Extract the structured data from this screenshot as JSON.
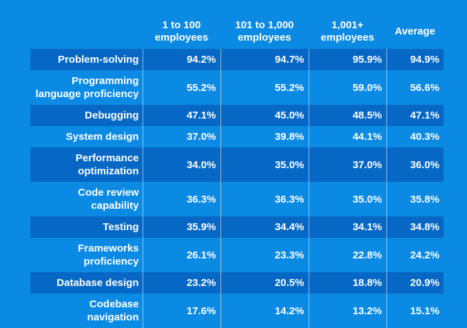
{
  "chart_data": {
    "type": "table",
    "columns": [
      "1 to 100 employees",
      "101 to 1,000 employees",
      "1,001+ employees",
      "Average"
    ],
    "header_lines": [
      [
        "1 to 100",
        "employees"
      ],
      [
        "101 to 1,000",
        "employees"
      ],
      [
        "1,001+",
        "employees"
      ],
      [
        "Average"
      ]
    ],
    "rows": [
      {
        "label": "Problem-solving",
        "label_lines": [
          "Problem-solving"
        ],
        "values": [
          "94.2%",
          "94.7%",
          "95.9%",
          "94.9%"
        ]
      },
      {
        "label": "Programming language proficiency",
        "label_lines": [
          "Programming",
          "language proficiency"
        ],
        "values": [
          "55.2%",
          "55.2%",
          "59.0%",
          "56.6%"
        ]
      },
      {
        "label": "Debugging",
        "label_lines": [
          "Debugging"
        ],
        "values": [
          "47.1%",
          "45.0%",
          "48.5%",
          "47.1%"
        ]
      },
      {
        "label": "System design",
        "label_lines": [
          "System design"
        ],
        "values": [
          "37.0%",
          "39.8%",
          "44.1%",
          "40.3%"
        ]
      },
      {
        "label": "Performance optimization",
        "label_lines": [
          "Performance",
          "optimization"
        ],
        "values": [
          "34.0%",
          "35.0%",
          "37.0%",
          "36.0%"
        ]
      },
      {
        "label": "Code review capability",
        "label_lines": [
          "Code review",
          "capability"
        ],
        "values": [
          "36.3%",
          "36.3%",
          "35.0%",
          "35.8%"
        ]
      },
      {
        "label": "Testing",
        "label_lines": [
          "Testing"
        ],
        "values": [
          "35.9%",
          "34.4%",
          "34.1%",
          "34.8%"
        ]
      },
      {
        "label": "Frameworks proficiency",
        "label_lines": [
          "Frameworks",
          "proficiency"
        ],
        "values": [
          "26.1%",
          "23.3%",
          "22.8%",
          "24.2%"
        ]
      },
      {
        "label": "Database design",
        "label_lines": [
          "Database design"
        ],
        "values": [
          "23.2%",
          "20.5%",
          "18.8%",
          "20.9%"
        ]
      },
      {
        "label": "Codebase navigation",
        "label_lines": [
          "Codebase",
          "navigation"
        ],
        "values": [
          "17.6%",
          "14.2%",
          "13.2%",
          "15.1%"
        ]
      }
    ]
  },
  "colors": {
    "background": "#0b8ae4",
    "row_dark": "#0668c4",
    "row_light": "#0b8ae4",
    "text": "#ffffff"
  }
}
